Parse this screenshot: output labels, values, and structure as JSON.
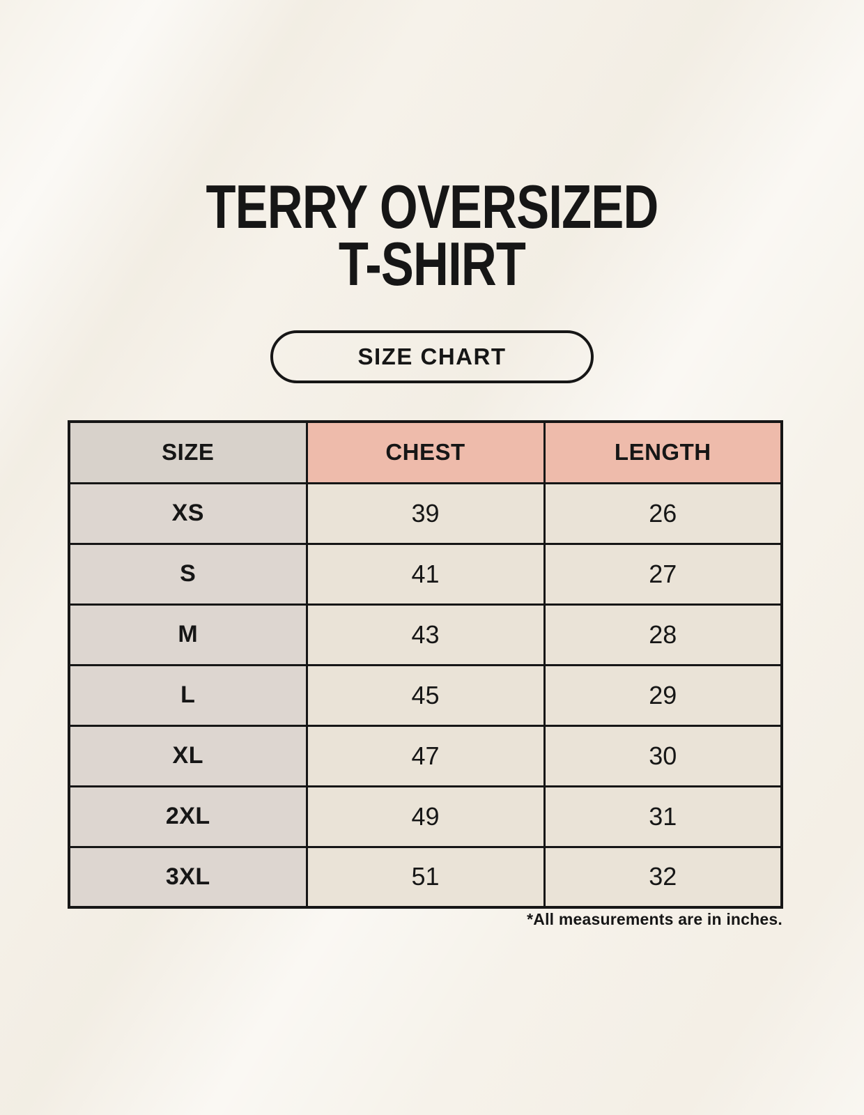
{
  "header": {
    "title_line1": "TERRY OVERSIZED",
    "title_line2": "T-SHIRT",
    "size_chart_label": "SIZE CHART"
  },
  "table": {
    "columns": [
      "SIZE",
      "CHEST",
      "LENGTH"
    ],
    "rows": [
      {
        "size": "XS",
        "chest": "39",
        "length": "26"
      },
      {
        "size": "S",
        "chest": "41",
        "length": "27"
      },
      {
        "size": "M",
        "chest": "43",
        "length": "28"
      },
      {
        "size": "L",
        "chest": "45",
        "length": "29"
      },
      {
        "size": "XL",
        "chest": "47",
        "length": "30"
      },
      {
        "size": "2XL",
        "chest": "49",
        "length": "31"
      },
      {
        "size": "3XL",
        "chest": "51",
        "length": "32"
      }
    ]
  },
  "footnote": "*All measurements are in inches.",
  "colors": {
    "background": "#f6f2ea",
    "accent_header": "#eebbab",
    "size_column": "#ddd6d0",
    "header_size_cell": "#d8d2cb",
    "value_cell": "#eae3d7",
    "border": "#161616",
    "text": "#161616"
  }
}
